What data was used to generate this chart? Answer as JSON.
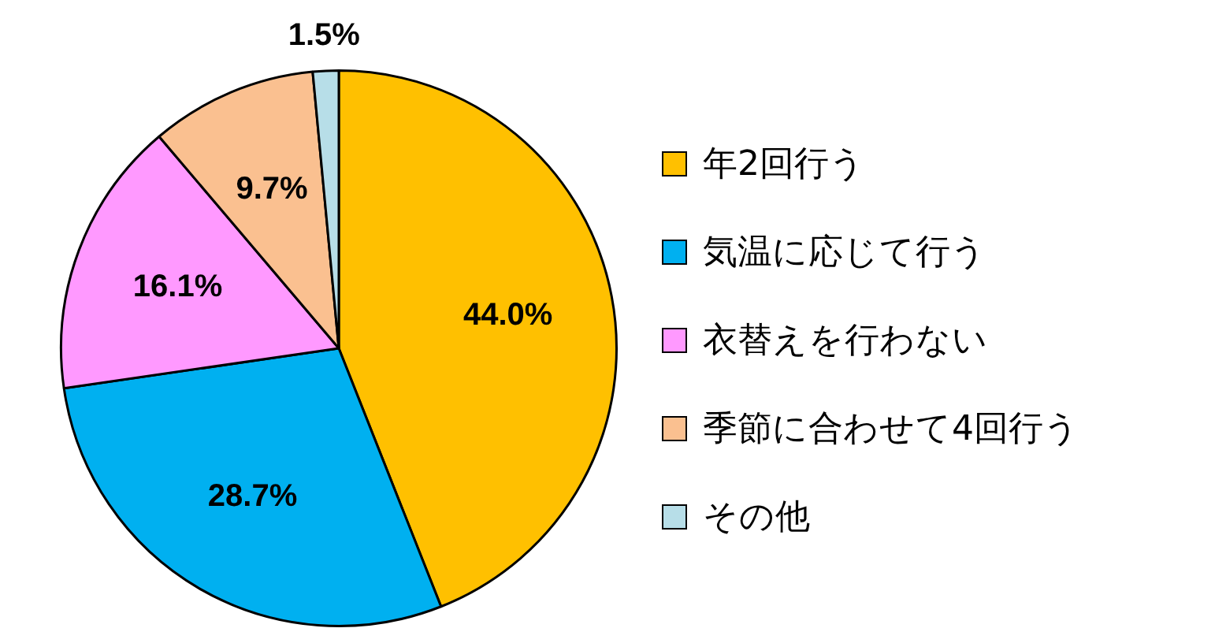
{
  "chart_data": {
    "type": "pie",
    "categories": [
      "年2回行う",
      "気温に応じて行う",
      "衣替えを行わない",
      "季節に合わせて4回行う",
      "その他"
    ],
    "values": [
      44.0,
      28.7,
      16.1,
      9.7,
      1.5
    ],
    "colors": [
      "#ffc000",
      "#00b0f0",
      "#ff99ff",
      "#fac090",
      "#b7dee8"
    ],
    "value_labels": [
      "44.0%",
      "28.7%",
      "16.1%",
      "9.7%",
      "1.5%"
    ],
    "legend": "right"
  }
}
